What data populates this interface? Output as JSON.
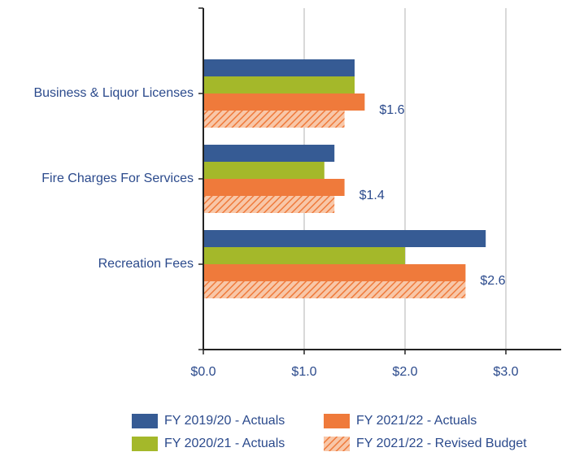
{
  "chart_data": {
    "type": "bar",
    "orientation": "horizontal",
    "categories": [
      "Business & Liquor Licenses",
      "Fire Charges For Services",
      "Recreation Fees"
    ],
    "series": [
      {
        "name": "FY 2019/20 - Actuals",
        "color": "#365b94",
        "values": [
          1.5,
          1.3,
          2.8
        ]
      },
      {
        "name": "FY 2020/21 - Actuals",
        "color": "#a4b82a",
        "values": [
          1.5,
          1.2,
          2.0
        ]
      },
      {
        "name": "FY 2021/22 - Actuals",
        "color": "#ef7a3b",
        "values": [
          1.6,
          1.4,
          2.6
        ],
        "value_labels": [
          "$1.6",
          "$1.4",
          "$2.6"
        ]
      },
      {
        "name": "FY 2021/22 - Revised Budget",
        "color": "#ef7a3b",
        "hatch": true,
        "values": [
          1.4,
          1.3,
          2.6
        ]
      }
    ],
    "xlim": [
      0,
      3.5
    ],
    "xticks": [
      {
        "value": 0,
        "label": "$0.0"
      },
      {
        "value": 1,
        "label": "$1.0"
      },
      {
        "value": 2,
        "label": "$2.0"
      },
      {
        "value": 3,
        "label": "$3.0"
      }
    ],
    "grid": true,
    "legend": "bottom"
  }
}
